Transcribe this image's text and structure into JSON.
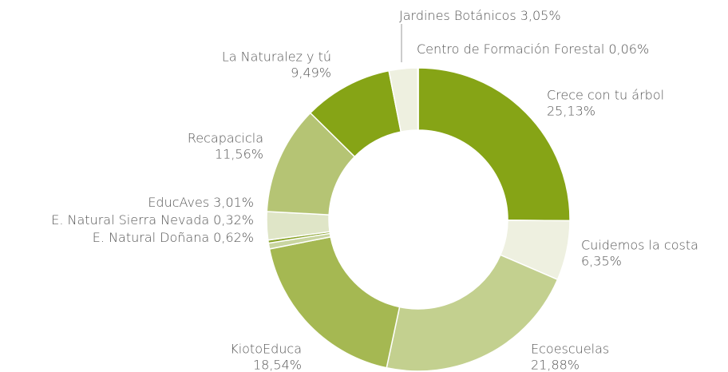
{
  "chart_data": {
    "type": "donut",
    "categories": [
      "Crece con tu árbol",
      "Cuidemos la costa",
      "Ecoescuelas",
      "KiotoEduca",
      "E. Natural Doñana",
      "E. Natural Sierra Nevada",
      "EducAves",
      "Recapacicla",
      "La Naturalez y tú",
      "Jardines Botánicos",
      "Centro de Formación Forestal"
    ],
    "values": [
      25.13,
      6.35,
      21.88,
      18.54,
      0.62,
      0.32,
      3.01,
      11.56,
      9.49,
      3.05,
      0.06
    ],
    "value_labels": [
      "25,13%",
      "6,35%",
      "21,88%",
      "18,54%",
      "0,62%",
      "0,32%",
      "3,01%",
      "11,56%",
      "9,49%",
      "3,05%",
      "0,06%"
    ],
    "colors": [
      "#86a416",
      "#eef0e0",
      "#c3d08f",
      "#a5b852",
      "#c9d5a0",
      "#8aa42a",
      "#dfe5c7",
      "#b5c474",
      "#86a416",
      "#eef0e0",
      "#a5b852"
    ]
  }
}
